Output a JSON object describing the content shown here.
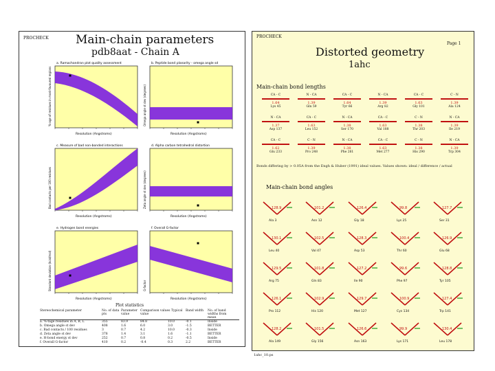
{
  "left_page": {
    "program_tag": "PROCHECK",
    "title": "Main-chain parameters",
    "subtitle": "pdb8aat - Chain A",
    "plots": [
      {
        "title": "a. Ramachandran plot quality assessment",
        "ylabel": "%-age of residues in most-favoured regions",
        "xlabel": "Resolution (Angstroms)"
      },
      {
        "title": "b. Peptide bond planarity - omega angle sd",
        "ylabel": "Omega angle st dev (degrees)",
        "xlabel": "Resolution (Angstroms)"
      },
      {
        "title": "c. Measure of bad non-bonded interactions",
        "ylabel": "Bad contacts per 100 residues",
        "xlabel": "Resolution (Angstroms)"
      },
      {
        "title": "d. Alpha carbon tetrahedral distortion",
        "ylabel": "Zeta angle st dev (degrees)",
        "xlabel": "Resolution (Angstroms)"
      },
      {
        "title": "e. Hydrogen bond energies",
        "ylabel": "Standard deviation (kcal/mol)",
        "xlabel": "Resolution (Angstroms)"
      },
      {
        "title": "f. Overall G-factor",
        "ylabel": "G-factor",
        "xlabel": "Resolution (Angstroms)"
      }
    ],
    "table": {
      "title": "Plot statistics",
      "headers": [
        "Stereochemical parameter",
        "No. of data pts",
        "Parameter value",
        "Comparison values Typical value",
        "Band width",
        "No. of band widths from mean"
      ],
      "rows": [
        [
          "a. %-tage residues in A, B, L",
          "355",
          "83.9",
          "84.8",
          "10.0",
          "-0.1",
          "Inside"
        ],
        [
          "b. Omega angle st dev",
          "408",
          "1.6",
          "6.0",
          "3.0",
          "-1.5",
          "BETTER"
        ],
        [
          "c. Bad contacts / 100 residues",
          "3",
          "0.7",
          "4.2",
          "10.0",
          "-0.3",
          "Inside"
        ],
        [
          "d. Zeta angle st dev",
          "378",
          "1.4",
          "3.1",
          "1.6",
          "-1.1",
          "BETTER"
        ],
        [
          "e. H-bond energy st dev",
          "252",
          "0.7",
          "0.8",
          "0.2",
          "-0.5",
          "Inside"
        ],
        [
          "f. Overall G-factor",
          "410",
          "0.2",
          "-0.4",
          "0.3",
          "2.2",
          "BETTER"
        ]
      ]
    }
  },
  "right_page": {
    "program_tag": "PROCHECK",
    "page_label": "Page 1",
    "title": "Distorted geometry",
    "subtitle": "1ahc",
    "bond_section": "Main-chain bond lengths",
    "bond_cells": [
      {
        "atoms": "CA - C",
        "value": "1.64",
        "residue": "Lys 45"
      },
      {
        "atoms": "N - CA",
        "value": "1.39",
        "residue": "Gln 59"
      },
      {
        "atoms": "CA - C",
        "value": "1.64",
        "residue": "Tyr 66"
      },
      {
        "atoms": "N - CA",
        "value": "1.39",
        "residue": "Arg 82"
      },
      {
        "atoms": "CA - C",
        "value": "1.63",
        "residue": "Gly 101"
      },
      {
        "atoms": "C - N",
        "value": "1.39",
        "residue": "Ala 124"
      },
      {
        "atoms": "N - CA",
        "value": "1.37",
        "residue": "Asp 137"
      },
      {
        "atoms": "CA - C",
        "value": "1.63",
        "residue": "Leu 152"
      },
      {
        "atoms": "N - CA",
        "value": "1.38",
        "residue": "Ser 170"
      },
      {
        "atoms": "CA - C",
        "value": "1.63",
        "residue": "Val 188"
      },
      {
        "atoms": "C - N",
        "value": "1.38",
        "residue": "Thr 203"
      },
      {
        "atoms": "N - CA",
        "value": "1.39",
        "residue": "Ile 219"
      },
      {
        "atoms": "CA - C",
        "value": "1.62",
        "residue": "Glu 233"
      },
      {
        "atoms": "C - N",
        "value": "1.39",
        "residue": "Pro 248"
      },
      {
        "atoms": "N - CA",
        "value": "1.38",
        "residue": "Phe 261"
      },
      {
        "atoms": "CA - C",
        "value": "1.63",
        "residue": "Met 277"
      },
      {
        "atoms": "C - N",
        "value": "1.38",
        "residue": "His 290"
      },
      {
        "atoms": "N - CA",
        "value": "1.39",
        "residue": "Trp 304"
      }
    ],
    "bond_footnote": "Bonds differing by > 0.05A from the Engh & Huber (1991) ideal values. Values shown: ideal / difference / actual",
    "angle_section": "Main-chain bond angles",
    "angle_cells": [
      {
        "value": "128.9",
        "residue": "Ala 3"
      },
      {
        "value": "101.2",
        "residue": "Asn 12"
      },
      {
        "value": "126.4",
        "residue": "Gly 18"
      },
      {
        "value": "99.8",
        "residue": "Lys 25"
      },
      {
        "value": "127.7",
        "residue": "Ser 31"
      },
      {
        "value": "130.1",
        "residue": "Leu 40"
      },
      {
        "value": "102.5",
        "residue": "Val 47"
      },
      {
        "value": "128.3",
        "residue": "Asp 53"
      },
      {
        "value": "100.4",
        "residue": "Thr 60"
      },
      {
        "value": "126.9",
        "residue": "Glu 68"
      },
      {
        "value": "129.5",
        "residue": "Arg 75"
      },
      {
        "value": "101.8",
        "residue": "Gln 83"
      },
      {
        "value": "127.2",
        "residue": "Ile 90"
      },
      {
        "value": "99.6",
        "residue": "Phe 97"
      },
      {
        "value": "128.8",
        "residue": "Tyr 105"
      },
      {
        "value": "126.1",
        "residue": "Pro 112"
      },
      {
        "value": "102.9",
        "residue": "His 120"
      },
      {
        "value": "129.7",
        "residue": "Met 127"
      },
      {
        "value": "100.9",
        "residue": "Cys 134"
      },
      {
        "value": "127.4",
        "residue": "Trp 141"
      },
      {
        "value": "128.2",
        "residue": "Ala 149"
      },
      {
        "value": "101.5",
        "residue": "Gly 156"
      },
      {
        "value": "126.6",
        "residue": "Asn 163"
      },
      {
        "value": "99.9",
        "residue": "Lys 171"
      },
      {
        "value": "130.4",
        "residue": "Leu 178"
      }
    ],
    "footer": "1ahc_10.ps"
  },
  "colors": {
    "band": "#7b1fe0",
    "plot_bg": "#ffffa8",
    "bond_red": "#c01010",
    "page_bg": "#fdfbd0"
  }
}
